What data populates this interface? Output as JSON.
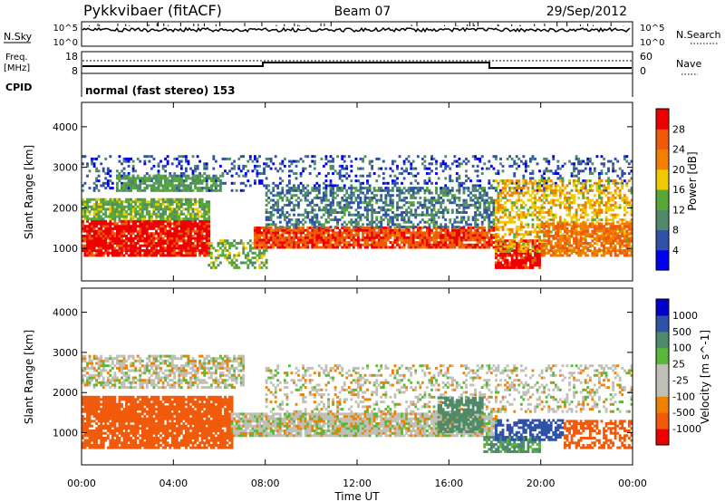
{
  "header": {
    "title": "Pykkvibaer (fitACF)",
    "beam": "Beam 07",
    "date": "29/Sep/2012"
  },
  "noise_panel": {
    "left_label": "N.Sky",
    "left_ticks": [
      "10^5",
      "10^0"
    ],
    "right_ticks": [
      "10^5",
      "10^0"
    ],
    "right_label": "N.Search"
  },
  "freq_panel": {
    "left_label_1": "Freq.",
    "left_label_2": "[MHz]",
    "left_ticks": [
      "18",
      "8"
    ],
    "right_ticks": [
      "60",
      "0"
    ],
    "right_label": "Nave"
  },
  "cpid": {
    "label": "CPID",
    "mode": "normal (fast stereo) 153"
  },
  "colors": {
    "power_scale": [
      "#0000ee",
      "#2f52a8",
      "#4f8a6a",
      "#58a838",
      "#f0c800",
      "#f08000",
      "#ee5a0a",
      "#ee0000"
    ],
    "velocity_scale": [
      "#ee0000",
      "#f05a0a",
      "#f08000",
      "#c0c0b8",
      "#c0c0b8",
      "#58b838",
      "#4f8a6a",
      "#2f52a8",
      "#0000cc"
    ],
    "ground_scatter": "#c0c0b8"
  },
  "chart_data": [
    {
      "type": "heatmap",
      "panel": "power",
      "ylabel": "Slant Range [km]",
      "ylim": [
        200,
        4600
      ],
      "yticks": [
        "1000",
        "2000",
        "3000",
        "4000"
      ],
      "xlim": [
        0,
        24
      ],
      "colorbar_label": "Power [dB]",
      "colorbar_ticks": [
        "4",
        "8",
        "12",
        "16",
        "20",
        "24",
        "28"
      ],
      "colorbar_range": [
        0,
        32
      ],
      "scatter_bands": [
        {
          "t0": 0,
          "t1": 24,
          "range": [
            2400,
            3300
          ],
          "power": 6,
          "density": 0.25
        },
        {
          "t0": 0,
          "t1": 5.5,
          "range": [
            800,
            1700
          ],
          "power": 30,
          "density": 0.9
        },
        {
          "t0": 0,
          "t1": 5.5,
          "range": [
            1700,
            2200
          ],
          "power": 14,
          "density": 0.8
        },
        {
          "t0": 1.5,
          "t1": 6,
          "range": [
            2400,
            2800
          ],
          "power": 12,
          "density": 0.7
        },
        {
          "t0": 5.5,
          "t1": 8,
          "range": [
            500,
            1200
          ],
          "power": 14,
          "density": 0.5
        },
        {
          "t0": 7.5,
          "t1": 18,
          "range": [
            1000,
            1500
          ],
          "power": 27,
          "density": 0.9
        },
        {
          "t0": 8,
          "t1": 18,
          "range": [
            1500,
            2500
          ],
          "power": 9,
          "density": 0.5
        },
        {
          "t0": 18,
          "t1": 20,
          "range": [
            500,
            1200
          ],
          "power": 30,
          "density": 0.85
        },
        {
          "t0": 18,
          "t1": 24,
          "range": [
            900,
            2700
          ],
          "power": 19,
          "density": 0.5
        },
        {
          "t0": 20,
          "t1": 24,
          "range": [
            800,
            1600
          ],
          "power": 24,
          "density": 0.7
        }
      ]
    },
    {
      "type": "heatmap",
      "panel": "velocity",
      "ylabel": "Slant Range [km]",
      "ylim": [
        200,
        4600
      ],
      "yticks": [
        "1000",
        "2000",
        "3000",
        "4000"
      ],
      "xlabel": "Time UT",
      "xlim": [
        0,
        24
      ],
      "xticks": [
        "00:00",
        "04:00",
        "08:00",
        "12:00",
        "16:00",
        "20:00",
        "00:00"
      ],
      "colorbar_label": "Velocity [m s^-1]",
      "colorbar_ticks": [
        "1000",
        "500",
        "100",
        "25",
        "-25",
        "-100",
        "-500",
        "-1000"
      ],
      "scatter_bands": [
        {
          "t0": 0,
          "t1": 6.5,
          "range": [
            600,
            1900
          ],
          "velocity": -300,
          "density": 0.85
        },
        {
          "t0": 0,
          "t1": 7,
          "range": [
            2100,
            2900
          ],
          "velocity": 0,
          "density": 0.6
        },
        {
          "t0": 6.5,
          "t1": 18,
          "range": [
            900,
            1500
          ],
          "velocity": 0,
          "density": 0.9
        },
        {
          "t0": 8,
          "t1": 24,
          "range": [
            1500,
            2700
          ],
          "velocity": 0,
          "density": 0.3
        },
        {
          "t0": 15.5,
          "t1": 17.5,
          "range": [
            1000,
            1900
          ],
          "velocity": 150,
          "density": 0.7
        },
        {
          "t0": 17.5,
          "t1": 20,
          "range": [
            500,
            900
          ],
          "velocity": 120,
          "density": 0.8
        },
        {
          "t0": 18,
          "t1": 21,
          "range": [
            800,
            1300
          ],
          "velocity": 600,
          "density": 0.6
        },
        {
          "t0": 21,
          "t1": 24,
          "range": [
            600,
            1300
          ],
          "velocity": -150,
          "density": 0.6
        }
      ]
    }
  ]
}
